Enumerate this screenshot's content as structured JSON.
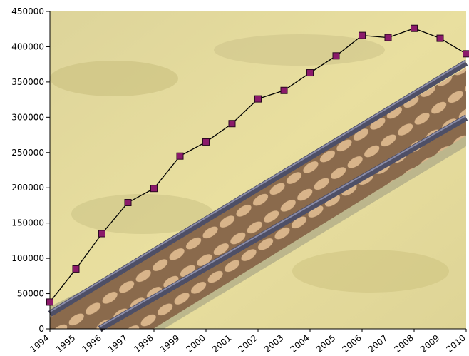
{
  "chart_data": {
    "type": "line",
    "categories": [
      "1994",
      "1995",
      "1996",
      "1997",
      "1998",
      "1999",
      "2000",
      "2001",
      "2002",
      "2003",
      "2004",
      "2005",
      "2006",
      "2007",
      "2008",
      "2009",
      "2010"
    ],
    "series": [
      {
        "values": [
          38000,
          85000,
          135000,
          179000,
          199000,
          245000,
          265000,
          291000,
          326000,
          338000,
          363000,
          387000,
          416000,
          413000,
          426000,
          412000,
          390000
        ]
      }
    ],
    "y_ticks": [
      "0",
      "50000",
      "100000",
      "150000",
      "200000",
      "250000",
      "300000",
      "350000",
      "400000",
      "450000"
    ],
    "ylim": [
      0,
      450000
    ],
    "grid": false,
    "legend": "none",
    "colors": {
      "line": "#000000",
      "marker_fill": "#8b1a6b",
      "marker_stroke": "#2a0a20",
      "axis": "#000000"
    }
  }
}
